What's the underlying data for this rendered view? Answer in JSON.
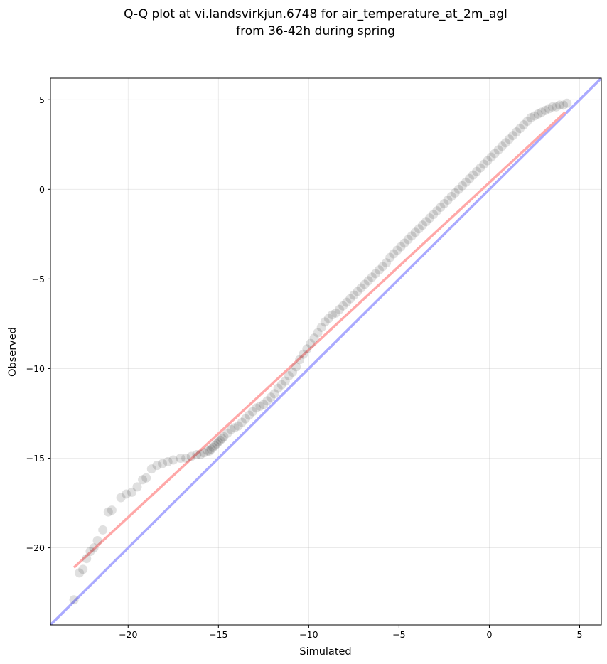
{
  "chart_data": {
    "type": "scatter",
    "title_lines": [
      "Q-Q plot at vi.landsvirkjun.6748 for air_temperature_at_2m_agl",
      "from 36-42h during spring"
    ],
    "xlabel": "Simulated",
    "ylabel": "Observed",
    "xlim": [
      -24.3,
      6.2
    ],
    "ylim": [
      -24.3,
      6.2
    ],
    "x_ticks": [
      -20,
      -15,
      -10,
      -5,
      0,
      5
    ],
    "y_ticks": [
      5,
      0,
      -5,
      -10,
      -15,
      -20
    ],
    "x_tick_labels": [
      "−20",
      "−15",
      "−10",
      "−5",
      "0",
      "5"
    ],
    "y_tick_labels": [
      "5",
      "0",
      "−5",
      "−10",
      "−15",
      "−20"
    ],
    "grid": true,
    "colors": {
      "points": "#000000",
      "identity_line": "#aaaaff",
      "fit_line": "#ffa8a8",
      "fit_line_dense": "#c01818",
      "identity_line_dense": "#1a1aa0"
    },
    "identity_line": {
      "x": [
        -24.3,
        6.2
      ],
      "y": [
        -24.3,
        6.2
      ]
    },
    "fit_line": {
      "x": [
        -23.0,
        4.2
      ],
      "y": [
        -21.1,
        4.3
      ]
    },
    "series": [
      {
        "x": [
          -23.0,
          -22.7,
          -22.5,
          -22.3,
          -22.1,
          -21.9,
          -21.7,
          -21.4,
          -21.1,
          -20.9,
          -20.4,
          -20.1,
          -19.8,
          -19.5,
          -19.2,
          -19.0,
          -18.7,
          -18.4,
          -18.1,
          -17.8,
          -17.5,
          -17.1,
          -16.8,
          -16.5,
          -16.2,
          -16.0,
          -15.8,
          -15.6,
          -15.5,
          -15.4,
          -15.3,
          -15.2,
          -15.1,
          -15.0,
          -14.9,
          -14.8,
          -14.7,
          -14.5,
          -14.3,
          -14.1,
          -13.9,
          -13.7,
          -13.5,
          -13.3,
          -13.1,
          -12.9,
          -12.7,
          -12.5,
          -12.3,
          -12.1,
          -11.9,
          -11.7,
          -11.5,
          -11.3,
          -11.1,
          -10.9,
          -10.7,
          -10.5,
          -10.3,
          -10.1,
          -9.9,
          -9.7,
          -9.5,
          -9.3,
          -9.1,
          -8.9,
          -8.7,
          -8.5,
          -8.3,
          -8.1,
          -7.9,
          -7.7,
          -7.5,
          -7.3,
          -7.1,
          -6.9,
          -6.7,
          -6.5,
          -6.3,
          -6.1,
          -5.9,
          -5.7,
          -5.5,
          -5.3,
          -5.1,
          -4.9,
          -4.7,
          -4.5,
          -4.3,
          -4.1,
          -3.9,
          -3.7,
          -3.5,
          -3.3,
          -3.1,
          -2.9,
          -2.7,
          -2.5,
          -2.3,
          -2.1,
          -1.9,
          -1.7,
          -1.5,
          -1.3,
          -1.1,
          -0.9,
          -0.7,
          -0.5,
          -0.3,
          -0.1,
          0.1,
          0.3,
          0.5,
          0.7,
          0.9,
          1.1,
          1.3,
          1.5,
          1.7,
          1.9,
          2.1,
          2.3,
          2.5,
          2.7,
          2.9,
          3.1,
          3.3,
          3.5,
          3.7,
          3.9,
          4.1,
          4.3
        ],
        "y": [
          -22.9,
          -21.4,
          -21.2,
          -20.6,
          -20.2,
          -20.0,
          -19.6,
          -19.0,
          -18.0,
          -17.9,
          -17.2,
          -17.0,
          -16.9,
          -16.6,
          -16.2,
          -16.1,
          -15.6,
          -15.4,
          -15.3,
          -15.2,
          -15.1,
          -15.0,
          -15.0,
          -14.9,
          -14.8,
          -14.8,
          -14.7,
          -14.6,
          -14.6,
          -14.5,
          -14.4,
          -14.3,
          -14.2,
          -14.1,
          -14.0,
          -13.9,
          -13.8,
          -13.6,
          -13.4,
          -13.3,
          -13.2,
          -13.0,
          -12.8,
          -12.6,
          -12.4,
          -12.2,
          -12.1,
          -12.0,
          -11.8,
          -11.6,
          -11.4,
          -11.1,
          -10.9,
          -10.7,
          -10.4,
          -10.2,
          -9.9,
          -9.5,
          -9.2,
          -8.9,
          -8.6,
          -8.3,
          -8.0,
          -7.7,
          -7.4,
          -7.2,
          -7.0,
          -6.9,
          -6.7,
          -6.5,
          -6.3,
          -6.1,
          -5.9,
          -5.7,
          -5.5,
          -5.3,
          -5.1,
          -4.9,
          -4.7,
          -4.5,
          -4.3,
          -4.1,
          -3.8,
          -3.6,
          -3.4,
          -3.2,
          -3.0,
          -2.8,
          -2.6,
          -2.4,
          -2.2,
          -2.0,
          -1.8,
          -1.6,
          -1.4,
          -1.2,
          -1.0,
          -0.8,
          -0.6,
          -0.4,
          -0.2,
          0.0,
          0.2,
          0.4,
          0.6,
          0.8,
          1.0,
          1.2,
          1.4,
          1.6,
          1.8,
          2.0,
          2.2,
          2.4,
          2.6,
          2.8,
          3.0,
          3.2,
          3.4,
          3.6,
          3.8,
          4.0,
          4.1,
          4.2,
          4.3,
          4.4,
          4.5,
          4.6,
          4.6,
          4.7,
          4.7,
          4.8
        ]
      }
    ]
  }
}
